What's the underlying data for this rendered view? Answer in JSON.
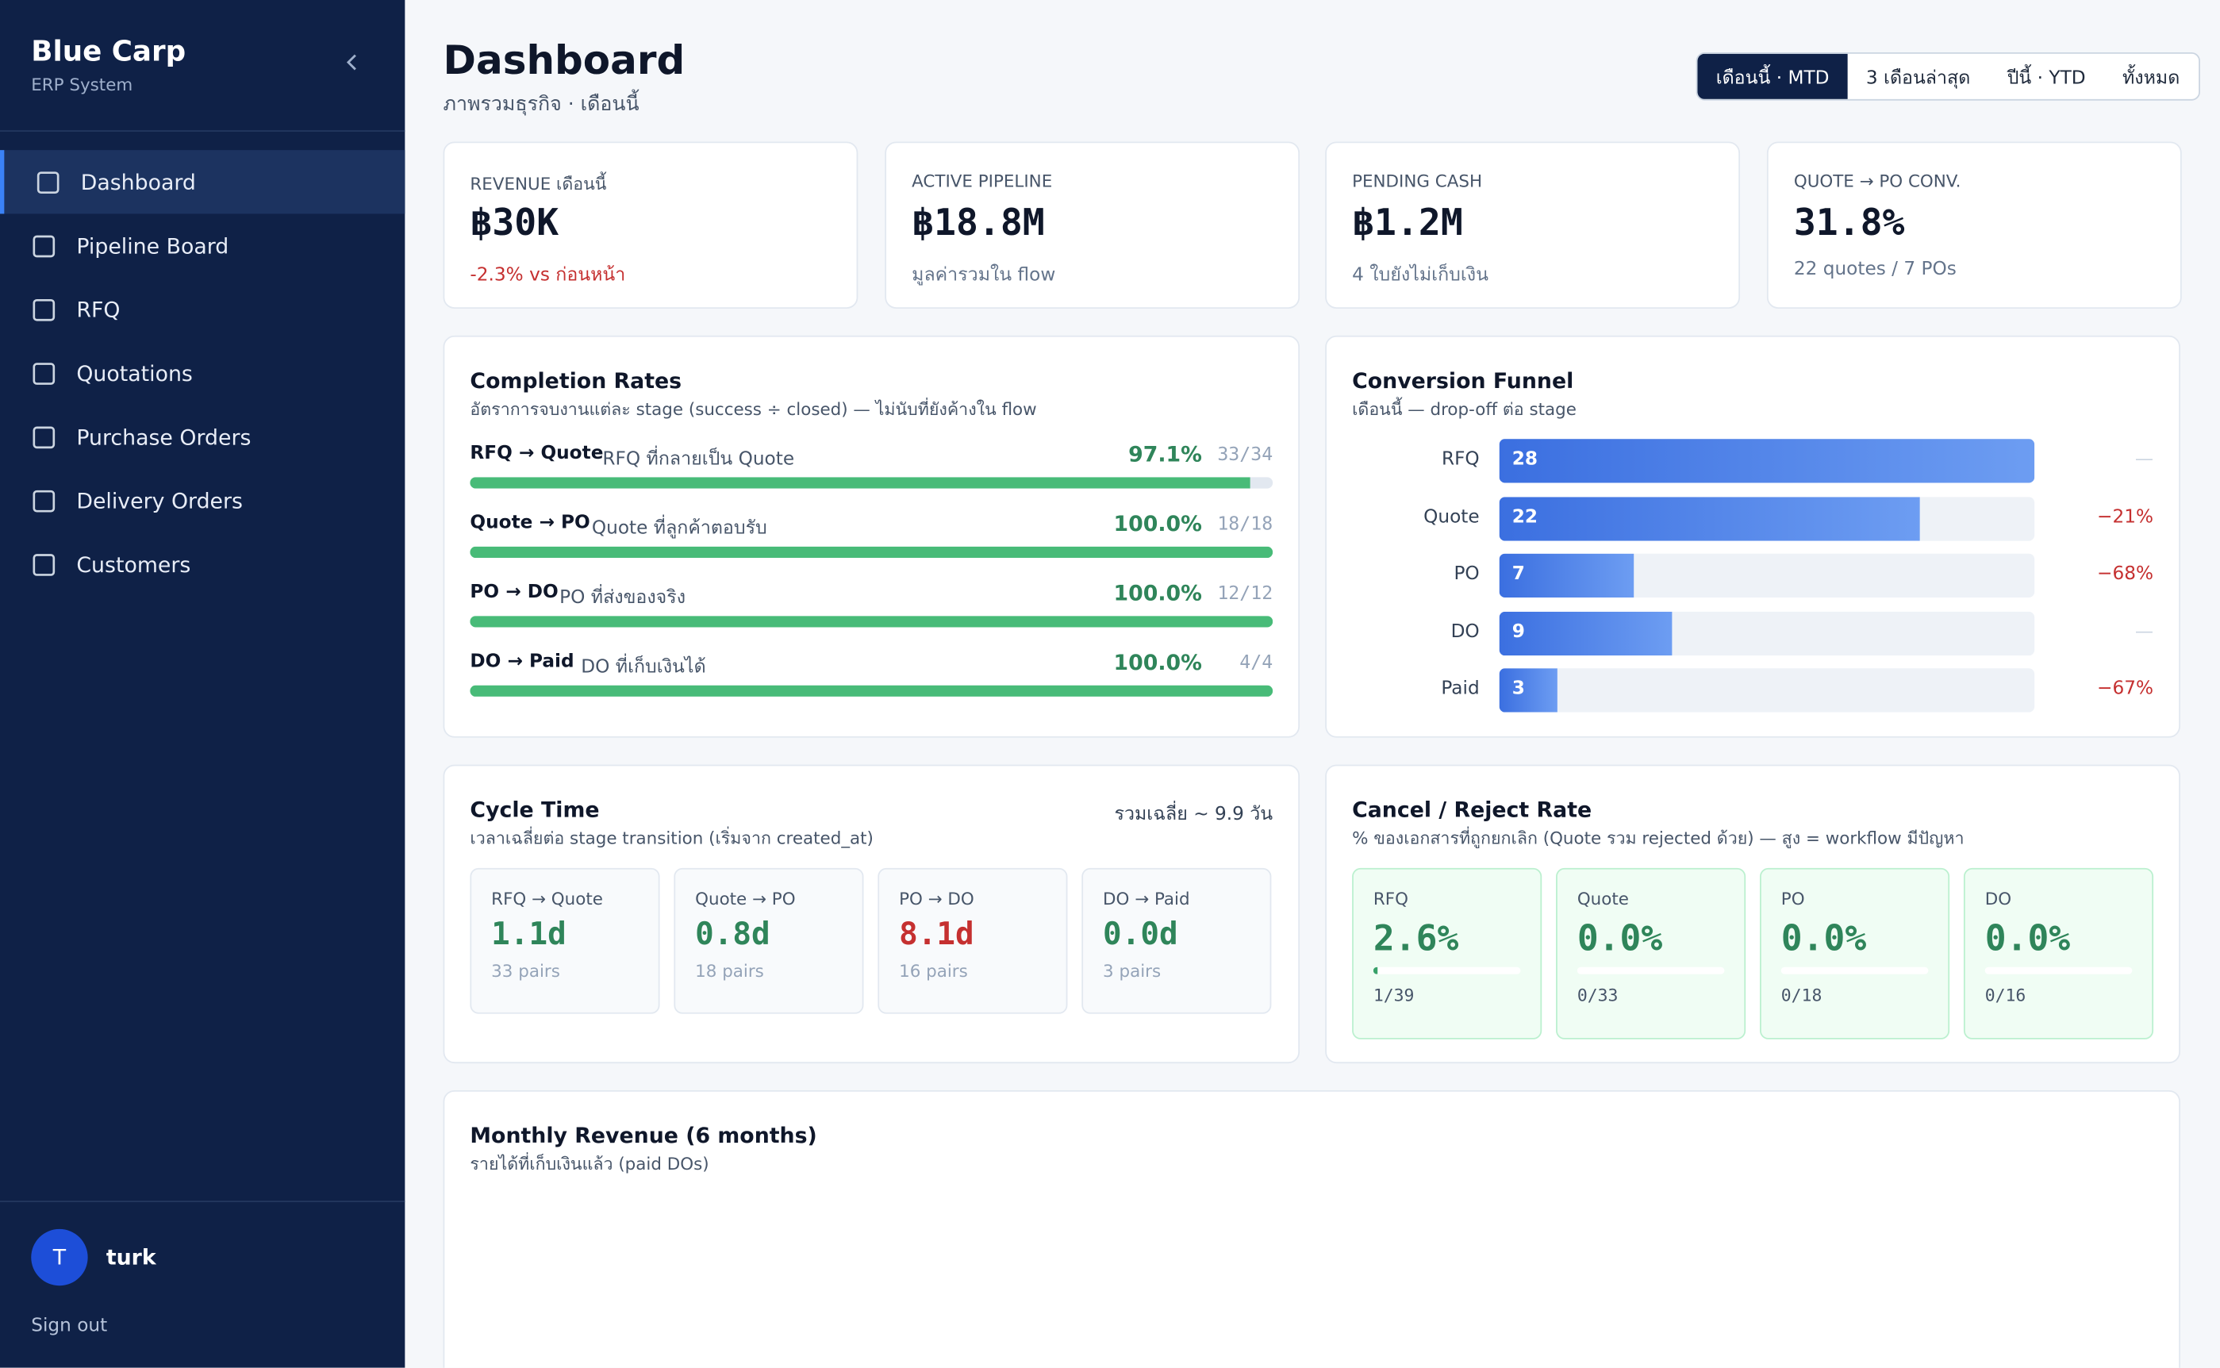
{
  "sidebar": {
    "brand": "Blue Carp",
    "subtitle": "ERP System",
    "nav": [
      "Dashboard",
      "Pipeline Board",
      "RFQ",
      "Quotations",
      "Purchase Orders",
      "Delivery Orders",
      "Customers"
    ],
    "user": {
      "initial": "T",
      "name": "turk"
    },
    "sign_out": "Sign out"
  },
  "header": {
    "title": "Dashboard",
    "subtitle": "ภาพรวมธุรกิจ · เดือนนี้",
    "periods": [
      "เดือนนี้ · MTD",
      "3 เดือนล่าสุด",
      "ปีนี้ · YTD",
      "ทั้งหมด"
    ]
  },
  "kpis": [
    {
      "label": "REVENUE เดือนนี้",
      "value": "฿30K",
      "note": "-2.3% vs ก่อนหน้า",
      "note_color": "#c53030"
    },
    {
      "label": "ACTIVE PIPELINE",
      "value": "฿18.8M",
      "note": "มูลค่ารวมใน flow",
      "note_color": "#64748b"
    },
    {
      "label": "PENDING CASH",
      "value": "฿1.2M",
      "note": "4 ใบยังไม่เก็บเงิน",
      "note_color": "#64748b"
    },
    {
      "label": "QUOTE → PO CONV.",
      "value": "31.8%",
      "note": "22 quotes / 7 POs",
      "note_color": "#64748b"
    }
  ],
  "completion": {
    "title": "Completion Rates",
    "subtitle": "อัตราการจบงานแต่ละ stage (success ÷ closed) — ไม่นับที่ยังค้างใน flow",
    "rows": [
      {
        "stage": "RFQ → Quote",
        "desc": "RFQ ที่กลายเป็น Quote",
        "value": 97.1,
        "value_label": "97.1%",
        "count": "33/34"
      },
      {
        "stage": "Quote → PO",
        "desc": "Quote ที่ลูกค้าตอบรับ",
        "value": 100,
        "value_label": "100.0%",
        "count": "18/18"
      },
      {
        "stage": "PO → DO",
        "desc": "PO ที่ส่งของจริง",
        "value": 100,
        "value_label": "100.0%",
        "count": "12/12"
      },
      {
        "stage": "DO → Paid",
        "desc": "DO ที่เก็บเงินได้",
        "value": 100,
        "value_label": "100.0%",
        "count": "4/4"
      }
    ]
  },
  "funnel": {
    "title": "Conversion Funnel",
    "subtitle": "เดือนนี้ — drop-off ต่อ stage",
    "stages": [
      {
        "name": "RFQ",
        "value": 28,
        "change": "—"
      },
      {
        "name": "Quote",
        "value": 22,
        "change": "−21%"
      },
      {
        "name": "PO",
        "value": 7,
        "change": "−68%"
      },
      {
        "name": "DO",
        "value": 9,
        "change": "—"
      },
      {
        "name": "Paid",
        "value": 3,
        "change": "−67%"
      }
    ]
  },
  "cycle": {
    "title": "Cycle Time",
    "subtitle": "เวลาเฉลี่ยต่อ stage transition (เริ่มจาก created_at)",
    "total": "รวมเฉลี่ย ~ 9.9 วัน",
    "items": [
      {
        "stage": "RFQ → Quote",
        "value": "1.1d",
        "pairs": "33 pairs",
        "color": "#2f855a"
      },
      {
        "stage": "Quote → PO",
        "value": "0.8d",
        "pairs": "18 pairs",
        "color": "#2f855a"
      },
      {
        "stage": "PO → DO",
        "value": "8.1d",
        "pairs": "16 pairs",
        "color": "#c53030"
      },
      {
        "stage": "DO → Paid",
        "value": "0.0d",
        "pairs": "3 pairs",
        "color": "#2f855a"
      }
    ]
  },
  "cancel": {
    "title": "Cancel / Reject Rate",
    "subtitle": "% ของเอกสารที่ถูกยกเลิก (Quote รวม rejected ด้วย) — สูง = workflow มีปัญหา",
    "items": [
      {
        "stage": "RFQ",
        "value": 2.6,
        "value_label": "2.6%",
        "count": "1/39"
      },
      {
        "stage": "Quote",
        "value": 0,
        "value_label": "0.0%",
        "count": "0/33"
      },
      {
        "stage": "PO",
        "value": 0,
        "value_label": "0.0%",
        "count": "0/18"
      },
      {
        "stage": "DO",
        "value": 0,
        "value_label": "0.0%",
        "count": "0/16"
      }
    ]
  },
  "monthly": {
    "title": "Monthly Revenue (6 months)",
    "subtitle": "รายได้ที่เก็บเงินแล้ว (paid DOs)"
  }
}
